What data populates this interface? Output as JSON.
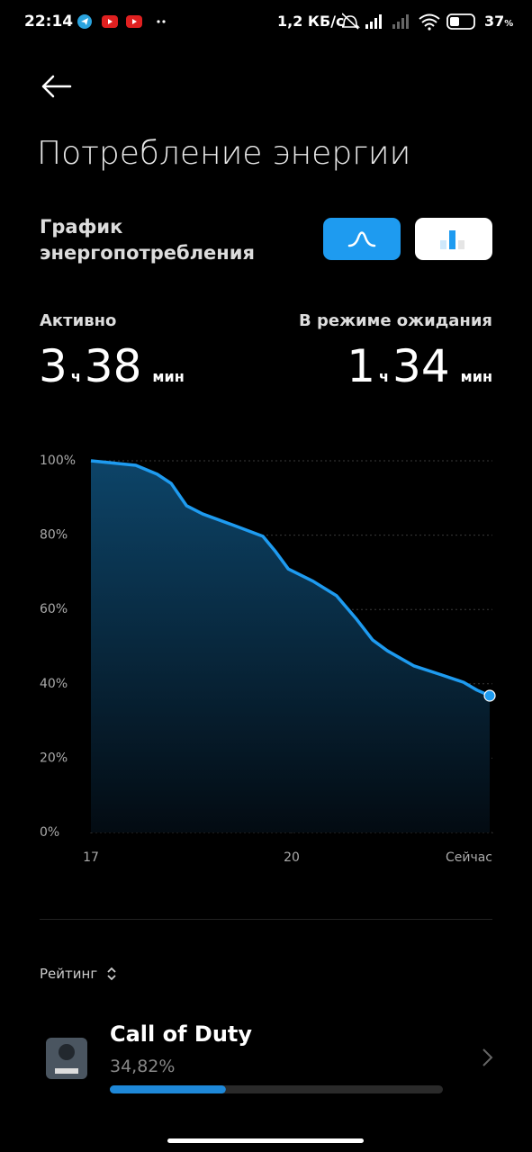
{
  "status_bar": {
    "time": "22:14",
    "speed": "1,2 КБ/с",
    "battery": "37",
    "battery_unit": "%"
  },
  "header": {
    "title": "Потребление энергии"
  },
  "section": {
    "title": "График энергопотребления"
  },
  "stats": [
    {
      "label": "Активно",
      "hours": "3",
      "hours_unit": "ч",
      "minutes": "38",
      "minutes_unit": "мин"
    },
    {
      "label": "В режиме ожидания",
      "hours": "1",
      "hours_unit": "ч",
      "minutes": "34",
      "minutes_unit": "мин"
    }
  ],
  "chart_data": {
    "type": "area",
    "color": "#1e9bf0",
    "x": [
      17,
      17.67,
      17.99,
      18.2,
      18.43,
      18.67,
      19.11,
      19.57,
      19.75,
      19.95,
      20.32,
      20.67,
      20.96,
      21.21,
      21.43,
      21.83,
      22.24,
      22.57,
      22.77,
      22.96
    ],
    "values": [
      100,
      98.8,
      96.4,
      93.9,
      87.9,
      85.7,
      82.8,
      79.7,
      75.8,
      70.9,
      67.6,
      63.7,
      57.6,
      51.8,
      48.9,
      44.8,
      42.4,
      40.4,
      38.3,
      36.8
    ],
    "xlim": [
      17,
      23
    ],
    "xticks": [
      17,
      20,
      {
        "value": 23,
        "label": "Сейчас"
      }
    ],
    "ylim": [
      0,
      100
    ],
    "yticks": [
      {
        "value": 0,
        "label": "0%"
      },
      {
        "value": 20,
        "label": "20%"
      },
      {
        "value": 40,
        "label": "40%"
      },
      {
        "value": 60,
        "label": "60%"
      },
      {
        "value": 80,
        "label": "80%"
      },
      {
        "value": 100,
        "label": "100%"
      }
    ],
    "grid": true
  },
  "ranking": {
    "label": "Рейтинг"
  },
  "apps": [
    {
      "name": "Call of Duty",
      "value": 34.82,
      "value_label": "34,82%"
    }
  ]
}
